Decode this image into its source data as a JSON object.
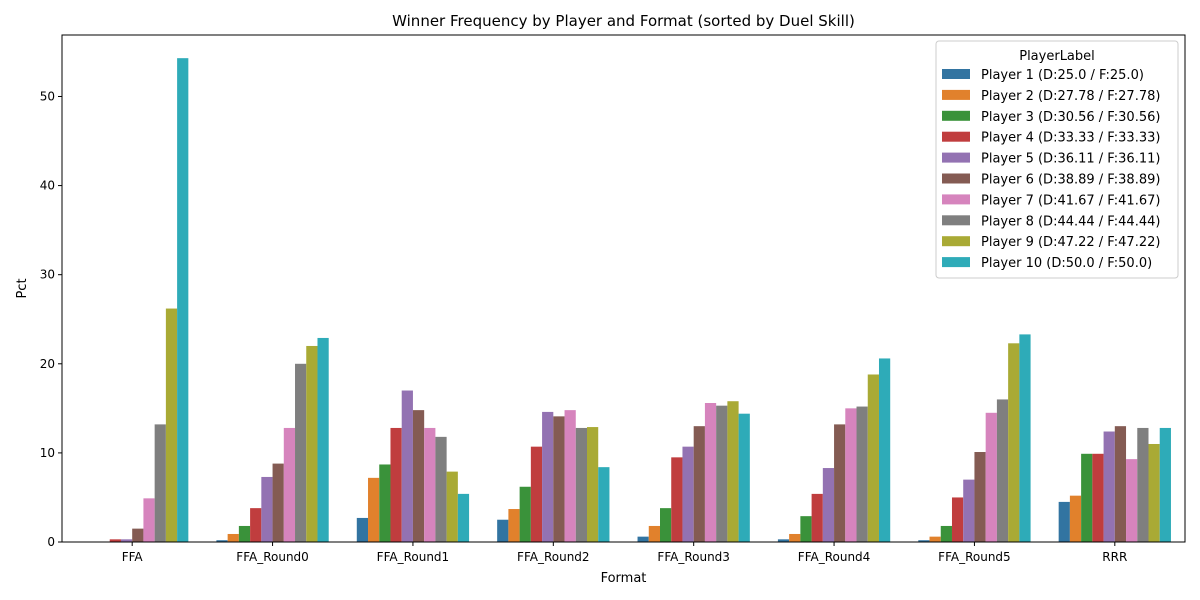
{
  "chart_data": {
    "type": "bar",
    "title": "Winner Frequency by Player and Format (sorted by Duel Skill)",
    "xlabel": "Format",
    "ylabel": "Pct",
    "ylim": [
      0,
      56.9
    ],
    "yticks": [
      0,
      10,
      20,
      30,
      40,
      50
    ],
    "grid": false,
    "legend": {
      "title": "PlayerLabel",
      "placement": "top-right"
    },
    "categories": [
      "FFA",
      "FFA_Round0",
      "FFA_Round1",
      "FFA_Round2",
      "FFA_Round3",
      "FFA_Round4",
      "FFA_Round5",
      "RRR"
    ],
    "series": [
      {
        "name": "Player 1 (D:25.0 / F:25.0)",
        "color": "#3274a1",
        "values": [
          0.0,
          0.2,
          2.7,
          2.5,
          0.6,
          0.3,
          0.2,
          4.5
        ]
      },
      {
        "name": "Player 2 (D:27.78 / F:27.78)",
        "color": "#e1812c",
        "values": [
          0.0,
          0.9,
          7.2,
          3.7,
          1.8,
          0.9,
          0.6,
          5.2
        ]
      },
      {
        "name": "Player 3 (D:30.56 / F:30.56)",
        "color": "#3a923a",
        "values": [
          0.0,
          1.8,
          8.7,
          6.2,
          3.8,
          2.9,
          1.8,
          9.9
        ]
      },
      {
        "name": "Player 4 (D:33.33 / F:33.33)",
        "color": "#c03d3e",
        "values": [
          0.3,
          3.8,
          12.8,
          10.7,
          9.5,
          5.4,
          5.0,
          9.9
        ]
      },
      {
        "name": "Player 5 (D:36.11 / F:36.11)",
        "color": "#9372b2",
        "values": [
          0.3,
          7.3,
          17.0,
          14.6,
          10.7,
          8.3,
          7.0,
          12.4
        ]
      },
      {
        "name": "Player 6 (D:38.89 / F:38.89)",
        "color": "#845b53",
        "values": [
          1.5,
          8.8,
          14.8,
          14.1,
          13.0,
          13.2,
          10.1,
          13.0
        ]
      },
      {
        "name": "Player 7 (D:41.67 / F:41.67)",
        "color": "#d684bd",
        "values": [
          4.9,
          12.8,
          12.8,
          14.8,
          15.6,
          15.0,
          14.5,
          9.3
        ]
      },
      {
        "name": "Player 8 (D:44.44 / F:44.44)",
        "color": "#7f7f7f",
        "values": [
          13.2,
          20.0,
          11.8,
          12.8,
          15.3,
          15.2,
          16.0,
          12.8
        ]
      },
      {
        "name": "Player 9 (D:47.22 / F:47.22)",
        "color": "#a9aa35",
        "values": [
          26.2,
          22.0,
          7.9,
          12.9,
          15.8,
          18.8,
          22.3,
          11.0
        ]
      },
      {
        "name": "Player 10 (D:50.0 / F:50.0)",
        "color": "#2eabb8",
        "values": [
          54.3,
          22.9,
          5.4,
          8.4,
          14.4,
          20.6,
          23.3,
          12.8
        ]
      }
    ]
  }
}
